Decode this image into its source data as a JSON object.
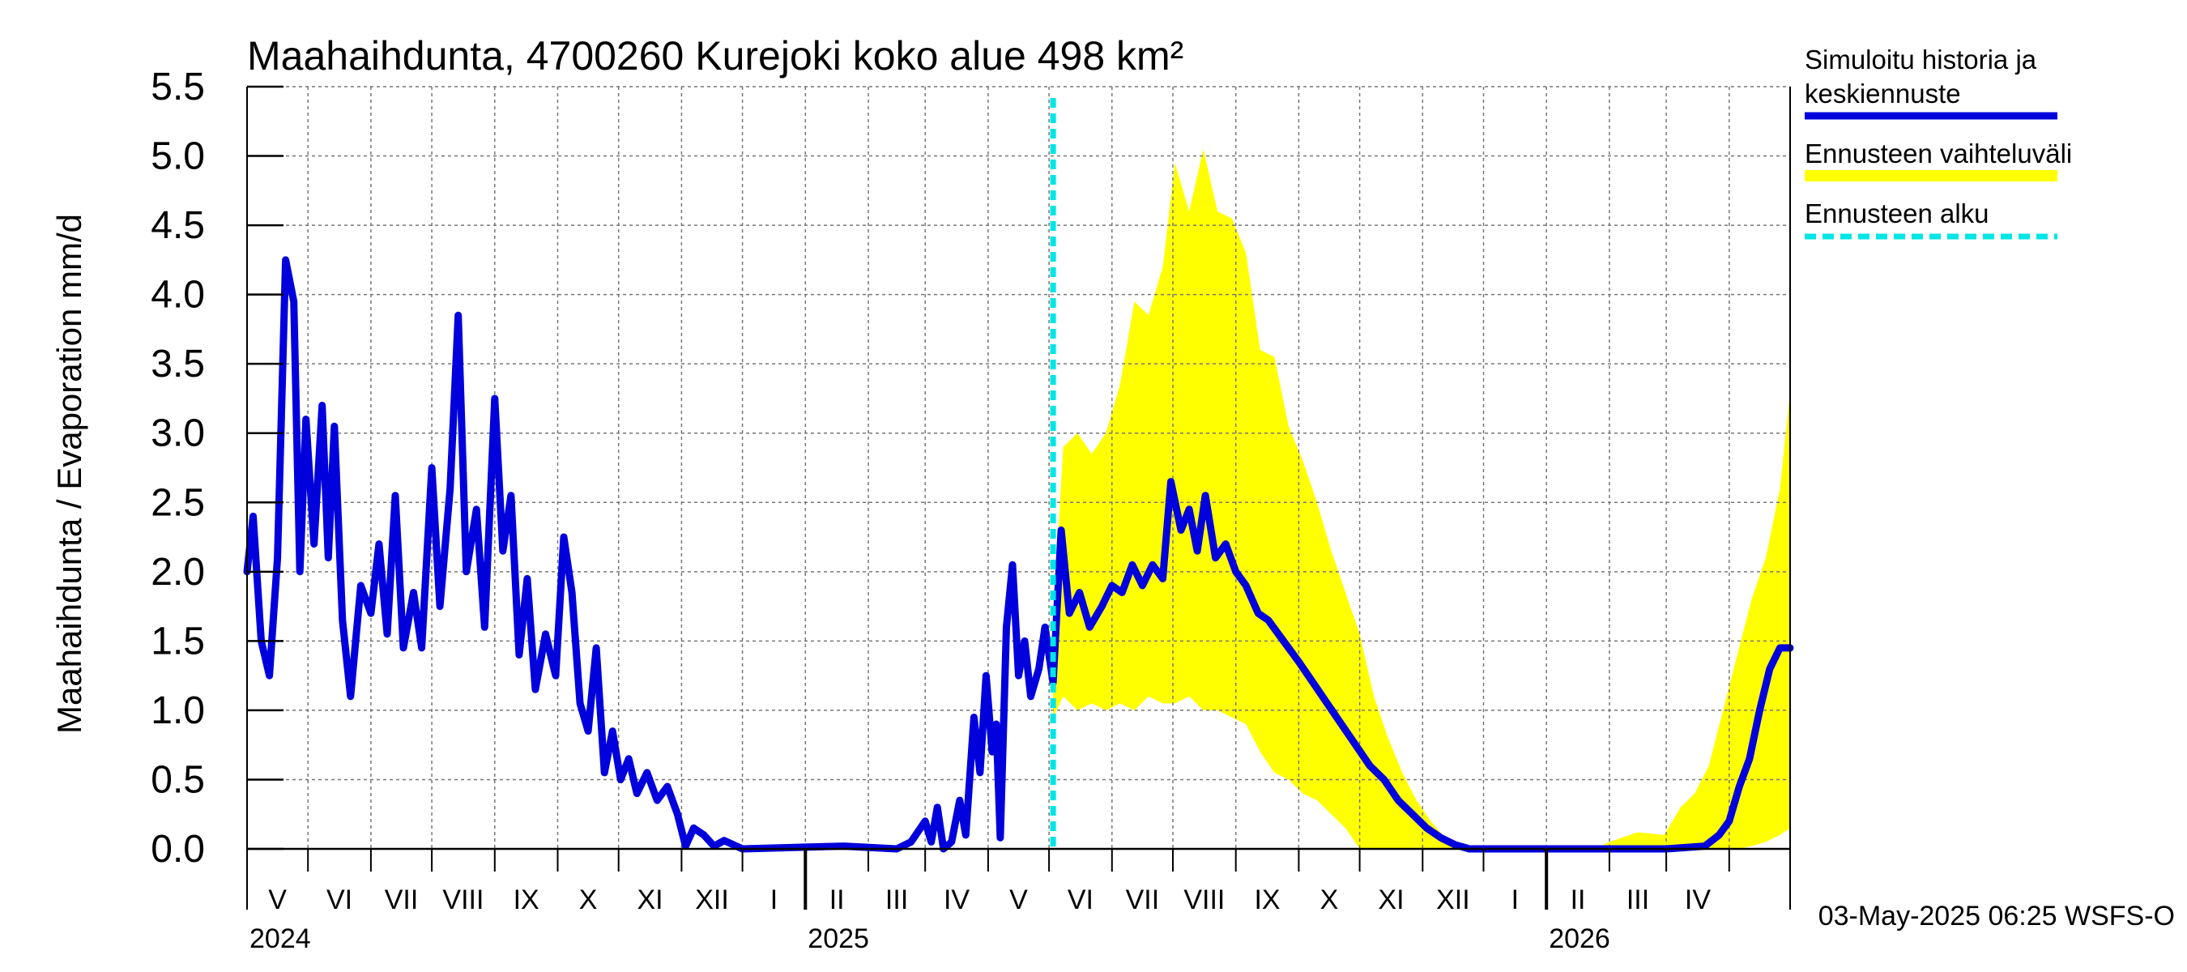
{
  "chart_data": {
    "type": "line",
    "title": "Maahaihdunta, 4700260 Kurejoki koko alue 498 km²",
    "ylabel": "Maahaihdunta / Evaporation   mm/d",
    "ylim": [
      0,
      5.5
    ],
    "yticks": [
      "0.0",
      "0.5",
      "1.0",
      "1.5",
      "2.0",
      "2.5",
      "3.0",
      "3.5",
      "4.0",
      "4.5",
      "5.0",
      "5.5"
    ],
    "xlim": [
      "2024-04-01",
      "2026-05-01"
    ],
    "month_labels": [
      "V",
      "VI",
      "VII",
      "VIII",
      "IX",
      "X",
      "XI",
      "XII",
      "I",
      "II",
      "III",
      "IV",
      "V",
      "VI",
      "VII",
      "VIII",
      "IX",
      "X",
      "XI",
      "XII",
      "I",
      "II",
      "III",
      "IV"
    ],
    "year_labels": [
      "2024",
      "2025",
      "2026"
    ],
    "grid": true,
    "legend_position": "right",
    "forecast_start": "2025-05-03",
    "timestamp": "03-May-2025 06:25 WSFS-O",
    "series": [
      {
        "name": "Simuloitu historia ja keskiennuste",
        "color": "#0000dd",
        "points": [
          [
            "2024-04-01",
            2.0
          ],
          [
            "2024-04-04",
            2.4
          ],
          [
            "2024-04-08",
            1.5
          ],
          [
            "2024-04-12",
            1.25
          ],
          [
            "2024-04-16",
            2.1
          ],
          [
            "2024-04-20",
            4.25
          ],
          [
            "2024-04-24",
            3.95
          ],
          [
            "2024-04-27",
            2.0
          ],
          [
            "2024-04-30",
            3.1
          ],
          [
            "2024-05-04",
            2.2
          ],
          [
            "2024-05-08",
            3.2
          ],
          [
            "2024-05-11",
            2.1
          ],
          [
            "2024-05-14",
            3.05
          ],
          [
            "2024-05-18",
            1.65
          ],
          [
            "2024-05-22",
            1.1
          ],
          [
            "2024-05-27",
            1.9
          ],
          [
            "2024-06-01",
            1.7
          ],
          [
            "2024-06-05",
            2.2
          ],
          [
            "2024-06-09",
            1.55
          ],
          [
            "2024-06-13",
            2.55
          ],
          [
            "2024-06-17",
            1.45
          ],
          [
            "2024-06-22",
            1.85
          ],
          [
            "2024-06-26",
            1.45
          ],
          [
            "2024-07-01",
            2.75
          ],
          [
            "2024-07-05",
            1.75
          ],
          [
            "2024-07-10",
            2.6
          ],
          [
            "2024-07-14",
            3.85
          ],
          [
            "2024-07-18",
            2.0
          ],
          [
            "2024-07-23",
            2.45
          ],
          [
            "2024-07-27",
            1.6
          ],
          [
            "2024-08-01",
            3.25
          ],
          [
            "2024-08-05",
            2.15
          ],
          [
            "2024-08-09",
            2.55
          ],
          [
            "2024-08-13",
            1.4
          ],
          [
            "2024-08-17",
            1.95
          ],
          [
            "2024-08-21",
            1.15
          ],
          [
            "2024-08-26",
            1.55
          ],
          [
            "2024-08-31",
            1.25
          ],
          [
            "2024-09-04",
            2.25
          ],
          [
            "2024-09-08",
            1.85
          ],
          [
            "2024-09-12",
            1.05
          ],
          [
            "2024-09-16",
            0.85
          ],
          [
            "2024-09-20",
            1.45
          ],
          [
            "2024-09-24",
            0.55
          ],
          [
            "2024-09-28",
            0.85
          ],
          [
            "2024-10-02",
            0.5
          ],
          [
            "2024-10-06",
            0.65
          ],
          [
            "2024-10-10",
            0.4
          ],
          [
            "2024-10-15",
            0.55
          ],
          [
            "2024-10-20",
            0.35
          ],
          [
            "2024-10-25",
            0.45
          ],
          [
            "2024-10-30",
            0.25
          ],
          [
            "2024-11-03",
            0.02
          ],
          [
            "2024-11-07",
            0.15
          ],
          [
            "2024-11-12",
            0.1
          ],
          [
            "2024-11-17",
            0.02
          ],
          [
            "2024-11-22",
            0.06
          ],
          [
            "2024-12-01",
            0.0
          ],
          [
            "2025-01-20",
            0.02
          ],
          [
            "2025-02-15",
            0.0
          ],
          [
            "2025-02-22",
            0.05
          ],
          [
            "2025-03-01",
            0.2
          ],
          [
            "2025-03-04",
            0.05
          ],
          [
            "2025-03-07",
            0.3
          ],
          [
            "2025-03-10",
            0.0
          ],
          [
            "2025-03-14",
            0.05
          ],
          [
            "2025-03-18",
            0.35
          ],
          [
            "2025-03-21",
            0.1
          ],
          [
            "2025-03-25",
            0.95
          ],
          [
            "2025-03-28",
            0.55
          ],
          [
            "2025-03-31",
            1.25
          ],
          [
            "2025-04-03",
            0.7
          ],
          [
            "2025-04-05",
            0.9
          ],
          [
            "2025-04-07",
            0.08
          ],
          [
            "2025-04-10",
            1.6
          ],
          [
            "2025-04-13",
            2.05
          ],
          [
            "2025-04-16",
            1.25
          ],
          [
            "2025-04-19",
            1.5
          ],
          [
            "2025-04-22",
            1.1
          ],
          [
            "2025-04-26",
            1.3
          ],
          [
            "2025-04-29",
            1.6
          ],
          [
            "2025-05-03",
            1.2
          ],
          [
            "2025-05-07",
            2.3
          ],
          [
            "2025-05-11",
            1.7
          ],
          [
            "2025-05-16",
            1.85
          ],
          [
            "2025-05-21",
            1.6
          ],
          [
            "2025-05-27",
            1.75
          ],
          [
            "2025-06-01",
            1.9
          ],
          [
            "2025-06-06",
            1.85
          ],
          [
            "2025-06-11",
            2.05
          ],
          [
            "2025-06-16",
            1.9
          ],
          [
            "2025-06-21",
            2.05
          ],
          [
            "2025-06-26",
            1.95
          ],
          [
            "2025-06-30",
            2.65
          ],
          [
            "2025-07-05",
            2.3
          ],
          [
            "2025-07-09",
            2.45
          ],
          [
            "2025-07-13",
            2.15
          ],
          [
            "2025-07-17",
            2.55
          ],
          [
            "2025-07-22",
            2.1
          ],
          [
            "2025-07-27",
            2.2
          ],
          [
            "2025-08-01",
            2.0
          ],
          [
            "2025-08-06",
            1.9
          ],
          [
            "2025-08-12",
            1.7
          ],
          [
            "2025-08-17",
            1.65
          ],
          [
            "2025-08-22",
            1.55
          ],
          [
            "2025-08-27",
            1.45
          ],
          [
            "2025-09-01",
            1.35
          ],
          [
            "2025-09-08",
            1.2
          ],
          [
            "2025-09-15",
            1.05
          ],
          [
            "2025-09-22",
            0.9
          ],
          [
            "2025-09-29",
            0.75
          ],
          [
            "2025-10-06",
            0.6
          ],
          [
            "2025-10-13",
            0.5
          ],
          [
            "2025-10-20",
            0.35
          ],
          [
            "2025-10-27",
            0.25
          ],
          [
            "2025-11-03",
            0.15
          ],
          [
            "2025-11-10",
            0.08
          ],
          [
            "2025-11-17",
            0.03
          ],
          [
            "2025-11-24",
            0.0
          ],
          [
            "2026-03-01",
            0.0
          ],
          [
            "2026-03-20",
            0.02
          ],
          [
            "2026-03-27",
            0.1
          ],
          [
            "2026-04-01",
            0.2
          ],
          [
            "2026-04-06",
            0.45
          ],
          [
            "2026-04-11",
            0.65
          ],
          [
            "2026-04-16",
            1.0
          ],
          [
            "2026-04-21",
            1.3
          ],
          [
            "2026-04-26",
            1.45
          ],
          [
            "2026-05-01",
            1.45
          ]
        ]
      },
      {
        "name": "Ennusteen vaihteluväli",
        "color": "#ffff00",
        "band": [
          [
            "2025-05-03",
            0.95,
            1.6
          ],
          [
            "2025-05-08",
            1.1,
            2.9
          ],
          [
            "2025-05-15",
            1.0,
            3.0
          ],
          [
            "2025-05-22",
            1.05,
            2.85
          ],
          [
            "2025-05-29",
            1.0,
            3.0
          ],
          [
            "2025-06-05",
            1.05,
            3.35
          ],
          [
            "2025-06-12",
            1.0,
            3.95
          ],
          [
            "2025-06-19",
            1.1,
            3.85
          ],
          [
            "2025-06-26",
            1.05,
            4.2
          ],
          [
            "2025-07-02",
            1.05,
            4.95
          ],
          [
            "2025-07-09",
            1.1,
            4.6
          ],
          [
            "2025-07-16",
            1.0,
            5.05
          ],
          [
            "2025-07-23",
            1.0,
            4.6
          ],
          [
            "2025-07-30",
            0.95,
            4.55
          ],
          [
            "2025-08-06",
            0.9,
            4.3
          ],
          [
            "2025-08-13",
            0.7,
            3.6
          ],
          [
            "2025-08-20",
            0.55,
            3.55
          ],
          [
            "2025-08-27",
            0.5,
            3.05
          ],
          [
            "2025-09-03",
            0.4,
            2.8
          ],
          [
            "2025-09-10",
            0.35,
            2.5
          ],
          [
            "2025-09-17",
            0.25,
            2.15
          ],
          [
            "2025-09-24",
            0.15,
            1.85
          ],
          [
            "2025-10-01",
            0.0,
            1.55
          ],
          [
            "2025-10-08",
            0.0,
            1.1
          ],
          [
            "2025-10-15",
            0.0,
            0.8
          ],
          [
            "2025-10-22",
            0.0,
            0.55
          ],
          [
            "2025-10-29",
            0.0,
            0.35
          ],
          [
            "2025-11-05",
            0.0,
            0.2
          ],
          [
            "2025-11-12",
            0.0,
            0.08
          ],
          [
            "2025-11-19",
            0.0,
            0.03
          ],
          [
            "2025-11-26",
            0.0,
            0.0
          ],
          [
            "2026-01-25",
            0.0,
            0.0
          ],
          [
            "2026-02-01",
            0.0,
            0.05
          ],
          [
            "2026-02-15",
            0.0,
            0.12
          ],
          [
            "2026-02-28",
            0.0,
            0.1
          ],
          [
            "2026-03-08",
            0.0,
            0.3
          ],
          [
            "2026-03-15",
            0.0,
            0.4
          ],
          [
            "2026-03-22",
            0.0,
            0.6
          ],
          [
            "2026-03-29",
            0.0,
            1.0
          ],
          [
            "2026-04-05",
            0.0,
            1.4
          ],
          [
            "2026-04-12",
            0.02,
            1.8
          ],
          [
            "2026-04-19",
            0.05,
            2.1
          ],
          [
            "2026-04-26",
            0.1,
            2.6
          ],
          [
            "2026-05-01",
            0.15,
            3.3
          ]
        ]
      },
      {
        "name": "Ennusteen alku",
        "color": "#00e5e5"
      }
    ]
  }
}
